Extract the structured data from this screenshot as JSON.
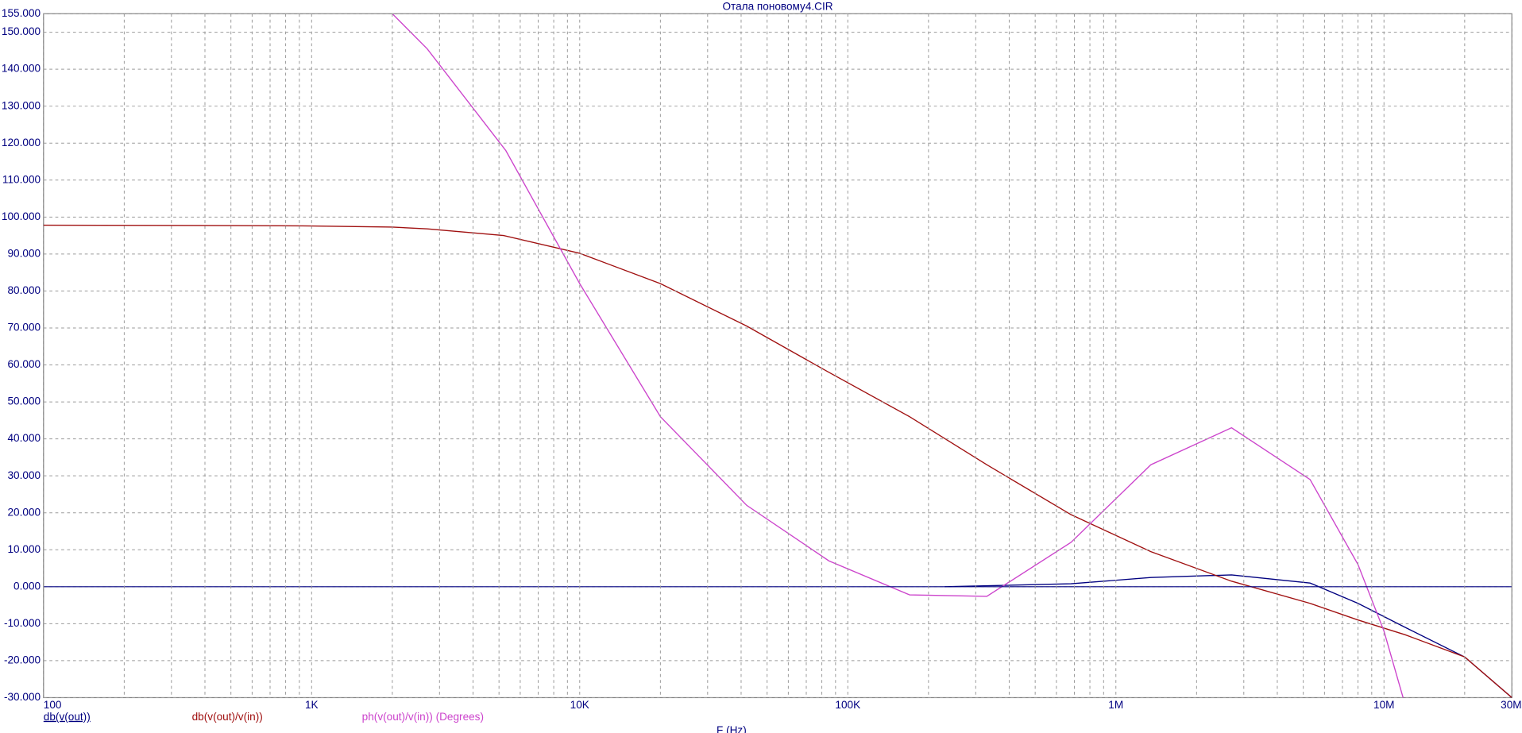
{
  "chart_data": {
    "type": "line",
    "title": "Отала поновому4.CIR",
    "x_label": "F (Hz)",
    "x_log": true,
    "grid": true,
    "minor_grid": true,
    "xlim": [
      100,
      30000000
    ],
    "xticks": [
      {
        "value": 100,
        "label": "100"
      },
      {
        "value": 1000,
        "label": "1K"
      },
      {
        "value": 10000,
        "label": "10K"
      },
      {
        "value": 100000,
        "label": "100K"
      },
      {
        "value": 1000000,
        "label": "1M"
      },
      {
        "value": 10000000,
        "label": "10M"
      },
      {
        "value": 30000000,
        "label": "30M"
      }
    ],
    "ylim": [
      -30,
      155
    ],
    "yticks": [
      {
        "value": 155,
        "label": "155.000"
      },
      {
        "value": 150,
        "label": "150.000"
      },
      {
        "value": 140,
        "label": "140.000"
      },
      {
        "value": 130,
        "label": "130.000"
      },
      {
        "value": 120,
        "label": "120.000"
      },
      {
        "value": 110,
        "label": "110.000"
      },
      {
        "value": 100,
        "label": "100.000"
      },
      {
        "value": 90,
        "label": "90.000"
      },
      {
        "value": 80,
        "label": "80.000"
      },
      {
        "value": 70,
        "label": "70.000"
      },
      {
        "value": 60,
        "label": "60.000"
      },
      {
        "value": 50,
        "label": "50.000"
      },
      {
        "value": 40,
        "label": "40.000"
      },
      {
        "value": 30,
        "label": "30.000"
      },
      {
        "value": 20,
        "label": "20.000"
      },
      {
        "value": 10,
        "label": "10.000"
      },
      {
        "value": 0,
        "label": "0.000"
      },
      {
        "value": -10,
        "label": "-10.000"
      },
      {
        "value": -20,
        "label": "-20.000"
      },
      {
        "value": -30,
        "label": "-30.000"
      }
    ],
    "series": [
      {
        "name": "db(v(out))",
        "color": "#000080",
        "x": [
          230000,
          680000,
          1350000,
          2700000,
          5300000,
          8000000,
          12000000,
          20000000,
          30000000
        ],
        "values": [
          0,
          0.8,
          2.5,
          3.2,
          1,
          -4.5,
          -11,
          -19,
          -30
        ]
      },
      {
        "name": "db(v(out)/v(in))",
        "color": "#a01010",
        "x": [
          100,
          500,
          1000,
          2000,
          2700,
          5200,
          10000,
          20000,
          42000,
          85000,
          170000,
          330000,
          680000,
          1350000,
          2700000,
          5300000,
          8000000,
          12000000,
          20000000,
          30000000
        ],
        "values": [
          97.8,
          97.7,
          97.6,
          97.3,
          96.8,
          95,
          90.2,
          82,
          70.5,
          58,
          46,
          33,
          19.5,
          9.5,
          1.5,
          -4.5,
          -9,
          -13,
          -19,
          -30
        ]
      },
      {
        "name": "ph(v(out)/v(in)) (Degrees)",
        "color": "#cc44cc",
        "x": [
          2000,
          2700,
          5300,
          10000,
          20000,
          42000,
          85000,
          170000,
          330000,
          680000,
          1350000,
          2700000,
          5300000,
          8000000,
          10000000,
          12000000
        ],
        "values": [
          155,
          145.5,
          118,
          82,
          46,
          22,
          7,
          -2.2,
          -2.6,
          12,
          33,
          43,
          29,
          6,
          -12,
          -32
        ]
      }
    ]
  }
}
